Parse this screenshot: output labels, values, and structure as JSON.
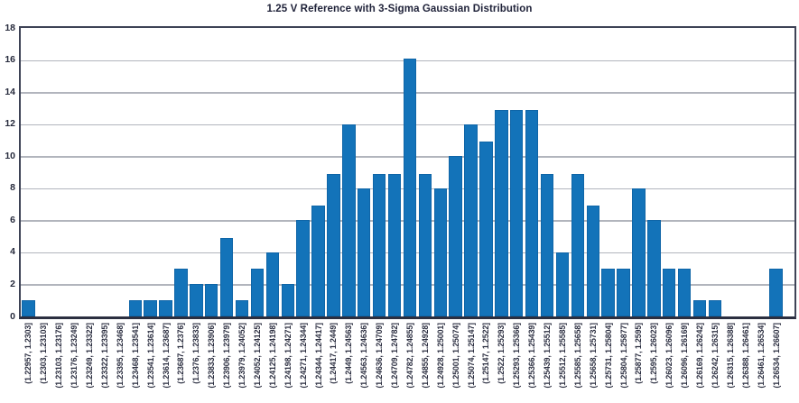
{
  "chart_data": {
    "type": "bar",
    "title": "1.25 V Reference with 3-Sigma Gaussian Distribution",
    "xlabel": "",
    "ylabel": "",
    "ylim": [
      0,
      18
    ],
    "yticks": [
      0,
      2,
      4,
      6,
      8,
      10,
      12,
      14,
      16,
      18
    ],
    "grid": "horizontal",
    "legend": "none",
    "categories": [
      "(1.22957, 1.2303]",
      "(1.2303, 1.23103]",
      "(1.23103, 1.23176]",
      "(1.23176, 1.23249]",
      "(1.23249, 1.23322]",
      "(1.23322, 1.23395]",
      "(1.23395, 1.23468]",
      "(1.23468, 1.23541]",
      "(1.23541, 1.23614]",
      "(1.23614, 1.23687]",
      "(1.23687, 1.2376]",
      "(1.2376, 1.23833]",
      "(1.23833, 1.23906]",
      "(1.23906, 1.23979]",
      "(1.23979, 1.24052]",
      "(1.24052, 1.24125]",
      "(1.24125, 1.24198]",
      "(1.24198, 1.24271]",
      "(1.24271, 1.24344]",
      "(1.24344, 1.24417]",
      "(1.24417, 1.2449]",
      "(1.2449, 1.24563]",
      "(1.24563, 1.24636]",
      "(1.24636, 1.24709]",
      "(1.24709, 1.24782]",
      "(1.24782, 1.24855]",
      "(1.24855, 1.24928]",
      "(1.24928, 1.25001]",
      "(1.25001, 1.25074]",
      "(1.25074, 1.25147]",
      "(1.25147, 1.2522]",
      "(1.2522, 1.25293]",
      "(1.25293, 1.25366]",
      "(1.25366, 1.25439]",
      "(1.25439, 1.25512]",
      "(1.25512, 1.25585]",
      "(1.25585, 1.25658]",
      "(1.25658, 1.25731]",
      "(1.25731, 1.25804]",
      "(1.25804, 1.25877]",
      "(1.25877, 1.2595]",
      "(1.2595, 1.26023]",
      "(1.26023, 1.26096]",
      "(1.26096, 1.26169]",
      "(1.26169, 1.26242]",
      "(1.26242, 1.26315]",
      "(1.26315, 1.26388]",
      "(1.26388, 1.26461]",
      "(1.26461, 1.26534]",
      "(1.26534, 1.26607]"
    ],
    "values": [
      1,
      0,
      0,
      0,
      0,
      0,
      0,
      1,
      1,
      1,
      3,
      2,
      2,
      4.9,
      1,
      3,
      4,
      2,
      6,
      6.9,
      8.9,
      12,
      8,
      8.9,
      8.9,
      16.1,
      8.9,
      8,
      10,
      12,
      10.9,
      12.9,
      12.9,
      12.9,
      8.9,
      4,
      8.9,
      6.9,
      3,
      3,
      8,
      6,
      3,
      3,
      1,
      1,
      0,
      0,
      0,
      3
    ],
    "colors": {
      "bar": "#1373b9",
      "grid": "#b2b5bd",
      "frame": "#3e4356",
      "axis_bottom": "#2b2f40",
      "text": "#262a3c",
      "background": "#ffffff"
    }
  }
}
